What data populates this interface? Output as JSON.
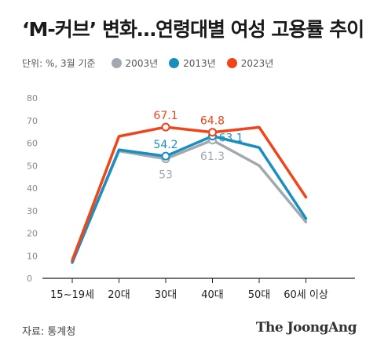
{
  "title": "‘M-커브’ 변화…연령대별 여성 고용률 추이",
  "legend": {
    "unit": "단위: %, 3월 기준",
    "items": [
      {
        "label": "2003년",
        "color": "#a2a9ae"
      },
      {
        "label": "2013년",
        "color": "#1a8fbf"
      },
      {
        "label": "2023년",
        "color": "#f0441b"
      }
    ]
  },
  "chart_data": {
    "type": "line",
    "categories": [
      "15~19세",
      "20대",
      "30대",
      "40대",
      "50대",
      "60세 이상"
    ],
    "ylim": [
      0,
      80
    ],
    "yticks": [
      0,
      10,
      20,
      30,
      40,
      50,
      60,
      70,
      80
    ],
    "grid": false,
    "series": [
      {
        "name": "2003년",
        "color": "#a2a9ae",
        "values": [
          7.5,
          56.5,
          53,
          61.3,
          50,
          25
        ]
      },
      {
        "name": "2013년",
        "color": "#1a8fbf",
        "values": [
          7,
          57,
          54.2,
          63.1,
          58,
          26.5
        ]
      },
      {
        "name": "2023년",
        "color": "#f0441b",
        "values": [
          8,
          63,
          67.1,
          64.8,
          67,
          36
        ]
      }
    ],
    "annotations": [
      {
        "series": 0,
        "index": 2,
        "label": "53",
        "pos": "below"
      },
      {
        "series": 0,
        "index": 3,
        "label": "61.3",
        "pos": "below"
      },
      {
        "series": 1,
        "index": 2,
        "label": "54.2",
        "pos": "above"
      },
      {
        "series": 1,
        "index": 3,
        "label": "63.1",
        "pos": "right"
      },
      {
        "series": 2,
        "index": 2,
        "label": "67.1",
        "pos": "above"
      },
      {
        "series": 2,
        "index": 3,
        "label": "64.8",
        "pos": "above"
      }
    ]
  },
  "footer": {
    "source": "자료: 통계청",
    "brand": "The JoongAng"
  }
}
